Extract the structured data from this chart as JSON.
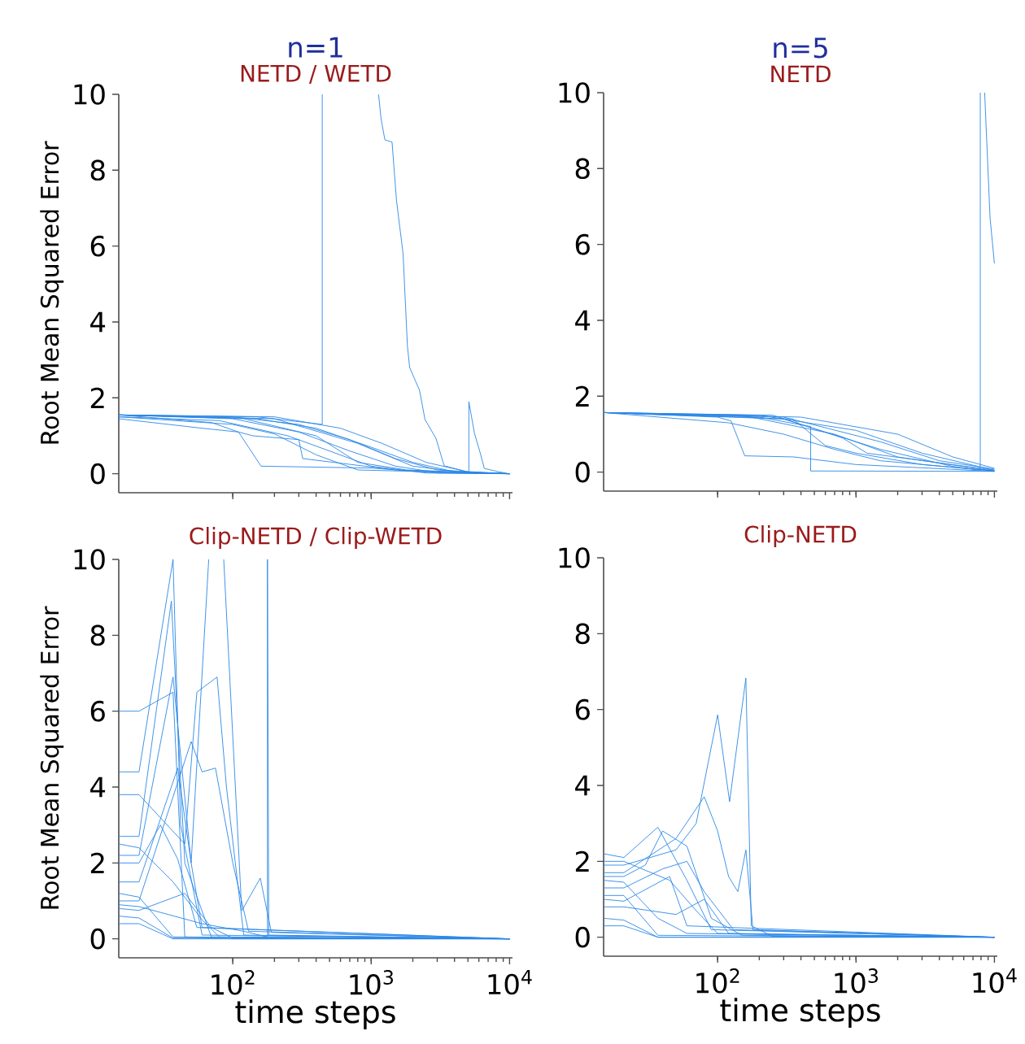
{
  "chart_data": [
    {
      "type": "line",
      "title": "n=1",
      "subtitle": "NETD / WETD",
      "ylabel": "Root Mean Squared Error",
      "log": "x",
      "tick_labels": "y",
      "xlim": [
        15,
        10500
      ],
      "ylim": [
        -0.5,
        10
      ],
      "xticks": [
        {
          "value": 100,
          "label": null
        },
        {
          "value": 1000,
          "label": null
        },
        {
          "value": 10000,
          "label": null
        }
      ],
      "yticks": [
        0,
        2,
        4,
        6,
        8,
        10
      ],
      "series": [
        {
          "color": "#2b87e8",
          "x": [
            15,
            100,
            300,
            700,
            1500,
            3000,
            10000
          ],
          "values": [
            1.55,
            1.5,
            1.3,
            0.9,
            0.4,
            0.1,
            0
          ]
        },
        {
          "color": "#2b87e8",
          "x": [
            15,
            100,
            300,
            700,
            1500,
            3000,
            10000
          ],
          "values": [
            1.55,
            1.45,
            1.1,
            0.6,
            0.2,
            0.03,
            0
          ]
        },
        {
          "color": "#2b87e8",
          "x": [
            15,
            150,
            400,
            1000,
            2000,
            4000,
            10000
          ],
          "values": [
            1.55,
            1.45,
            1.2,
            0.7,
            0.3,
            0.05,
            0
          ]
        },
        {
          "color": "#2b87e8",
          "x": [
            15,
            80,
            250,
            500,
            1000,
            2500,
            10000
          ],
          "values": [
            1.5,
            1.4,
            1.0,
            0.6,
            0.2,
            0.02,
            0
          ]
        },
        {
          "color": "#2b87e8",
          "x": [
            15,
            200,
            600,
            1200,
            2500,
            5000,
            10000
          ],
          "values": [
            1.55,
            1.5,
            1.2,
            0.8,
            0.3,
            0.05,
            0
          ]
        },
        {
          "color": "#2b87e8",
          "x": [
            15,
            60,
            110,
            130,
            160,
            1000,
            3000,
            10000
          ],
          "values": [
            1.45,
            1.2,
            1.1,
            0.7,
            0.2,
            0.15,
            0.02,
            0
          ]
        },
        {
          "color": "#2b87e8",
          "x": [
            15,
            70,
            110,
            140,
            300,
            320,
            1500,
            10000
          ],
          "values": [
            1.55,
            1.35,
            1.1,
            1.0,
            0.9,
            0.4,
            0.1,
            0
          ]
        },
        {
          "color": "#2b87e8",
          "x": [
            15,
            120,
            400,
            800,
            1800,
            10000
          ],
          "values": [
            1.55,
            1.45,
            1.0,
            0.3,
            0.1,
            0
          ]
        },
        {
          "color": "#2b87e8",
          "x": [
            15,
            100,
            200,
            400,
            800,
            10000
          ],
          "values": [
            1.5,
            1.3,
            1.05,
            0.5,
            0.1,
            0
          ]
        },
        {
          "color": "#2b87e8",
          "x": [
            15,
            150,
            443,
            443,
            800,
            1130,
            1178,
            1256,
            1415,
            1524,
            1700,
            1828,
            1897,
            2235,
            2448,
            2940,
            3370,
            5080,
            10000
          ],
          "values": [
            1.55,
            1.5,
            1.3,
            10,
            null,
            10,
            9.36,
            8.8,
            8.74,
            7.2,
            5.8,
            3.36,
            2.8,
            2.2,
            1.43,
            0.93,
            0.21,
            0.04,
            0
          ]
        },
        {
          "color": "#2b87e8",
          "x": [
            15,
            200,
            800,
            2000,
            5080,
            5080,
            5570,
            6110,
            6570,
            8400,
            10000
          ],
          "values": [
            1.55,
            1.45,
            0.8,
            0.2,
            0.02,
            1.9,
            1.07,
            0.57,
            0.14,
            0.05,
            0
          ]
        }
      ]
    },
    {
      "type": "line",
      "title": "n=5",
      "subtitle": "NETD",
      "log": "x",
      "tick_labels": "y",
      "xlim": [
        15,
        10500
      ],
      "ylim": [
        -0.5,
        10
      ],
      "xticks": [
        {
          "value": 100,
          "label": null
        },
        {
          "value": 1000,
          "label": null
        },
        {
          "value": 10000,
          "label": null
        }
      ],
      "yticks": [
        0,
        2,
        4,
        6,
        8,
        10
      ],
      "series": [
        {
          "color": "#2b87e8",
          "x": [
            15,
            200,
            1000,
            3000,
            10000
          ],
          "values": [
            1.57,
            1.5,
            1.1,
            0.5,
            0.05
          ]
        },
        {
          "color": "#2b87e8",
          "x": [
            15,
            150,
            700,
            2000,
            10000
          ],
          "values": [
            1.57,
            1.5,
            1.0,
            0.4,
            0.03
          ]
        },
        {
          "color": "#2b87e8",
          "x": [
            15,
            300,
            1500,
            4000,
            10000
          ],
          "values": [
            1.57,
            1.45,
            0.8,
            0.3,
            0.08
          ]
        },
        {
          "color": "#2b87e8",
          "x": [
            15,
            100,
            125,
            157,
            355,
            1000,
            10000
          ],
          "values": [
            1.57,
            1.45,
            1.35,
            0.43,
            0.4,
            0.2,
            0.02
          ]
        },
        {
          "color": "#2b87e8",
          "x": [
            15,
            200,
            470,
            470,
            10000
          ],
          "values": [
            1.57,
            1.45,
            1.2,
            0.03,
            0.02
          ]
        },
        {
          "color": "#2b87e8",
          "x": [
            15,
            250,
            800,
            1200,
            10000
          ],
          "values": [
            1.57,
            1.5,
            0.9,
            0.5,
            0.05
          ]
        },
        {
          "color": "#2b87e8",
          "x": [
            15,
            400,
            2000,
            5000,
            10000
          ],
          "values": [
            1.57,
            1.45,
            1.0,
            0.4,
            0.1
          ]
        },
        {
          "color": "#2b87e8",
          "x": [
            15,
            120,
            300,
            700,
            1500,
            10000
          ],
          "values": [
            1.57,
            1.3,
            1.0,
            0.6,
            0.3,
            0.03
          ]
        },
        {
          "color": "#2b87e8",
          "x": [
            15,
            350,
            600,
            1000,
            3000,
            10000
          ],
          "values": [
            1.57,
            1.4,
            0.7,
            0.5,
            0.2,
            0.03
          ]
        },
        {
          "color": "#2b87e8",
          "x": [
            15,
            300,
            1500,
            5000,
            7900,
            7900,
            8200,
            8500,
            9300,
            10000
          ],
          "values": [
            1.57,
            1.4,
            0.6,
            0.15,
            0.05,
            10,
            null,
            10,
            6.7,
            5.5
          ]
        }
      ]
    },
    {
      "type": "line",
      "title": "Clip-NETD / Clip-WETD",
      "xlabel": "time steps",
      "ylabel": "Root Mean Squared Error",
      "log": "x",
      "xlim": [
        15,
        10500
      ],
      "ylim": [
        -0.5,
        10
      ],
      "xticks": [
        {
          "value": 100,
          "label": "10$^{2}$"
        },
        {
          "value": 1000,
          "label": "10$^{3}$"
        },
        {
          "value": 10000,
          "label": "10$^{4}$"
        }
      ],
      "yticks": [
        0,
        2,
        4,
        6,
        8,
        10
      ],
      "series": [
        {
          "color": "#2b87e8",
          "x": [
            15,
            21,
            37,
            45,
            100,
            10000
          ],
          "values": [
            6.0,
            6.0,
            6.5,
            0.05,
            0,
            0
          ]
        },
        {
          "color": "#2b87e8",
          "x": [
            15,
            21,
            37,
            42,
            60,
            10000
          ],
          "values": [
            4.4,
            4.4,
            10,
            3.0,
            0.1,
            0
          ]
        },
        {
          "color": "#2b87e8",
          "x": [
            15,
            21,
            36,
            45,
            70,
            10000
          ],
          "values": [
            2.7,
            2.7,
            8.9,
            2.0,
            0.05,
            0
          ]
        },
        {
          "color": "#2b87e8",
          "x": [
            15,
            21,
            37,
            50,
            67,
            75,
            86,
            116,
            158,
            190,
            10000
          ],
          "values": [
            2.2,
            2.2,
            6.9,
            2.0,
            10,
            null,
            10,
            0.74,
            1.6,
            0.17,
            0
          ]
        },
        {
          "color": "#2b87e8",
          "x": [
            15,
            21,
            45,
            55,
            77,
            90,
            120,
            10000
          ],
          "values": [
            3.8,
            3.8,
            2.5,
            6.5,
            6.9,
            4.0,
            0.1,
            0
          ]
        },
        {
          "color": "#2b87e8",
          "x": [
            15,
            21,
            50,
            60,
            75,
            100,
            130,
            10000
          ],
          "values": [
            1.0,
            1.0,
            5.2,
            4.4,
            4.5,
            2.0,
            0.2,
            0
          ]
        },
        {
          "color": "#2b87e8",
          "x": [
            15,
            21,
            30,
            40,
            55,
            10000
          ],
          "values": [
            2.0,
            2.0,
            3.0,
            2.1,
            0.3,
            0
          ]
        },
        {
          "color": "#2b87e8",
          "x": [
            15,
            21,
            37,
            10000
          ],
          "values": [
            1.2,
            1.1,
            0.05,
            0
          ]
        },
        {
          "color": "#2b87e8",
          "x": [
            15,
            21,
            37,
            10000
          ],
          "values": [
            0.6,
            0.55,
            0.02,
            0
          ]
        },
        {
          "color": "#2b87e8",
          "x": [
            15,
            21,
            45,
            70,
            100,
            10000
          ],
          "values": [
            0.8,
            0.75,
            1.2,
            0.3,
            0.02,
            0
          ]
        },
        {
          "color": "#2b87e8",
          "x": [
            15,
            21,
            37,
            60,
            80,
            10000
          ],
          "values": [
            2.5,
            2.4,
            1.5,
            0.5,
            0.05,
            0
          ]
        },
        {
          "color": "#2b87e8",
          "x": [
            15,
            21,
            60,
            120,
            178,
            178,
            182,
            10000
          ],
          "values": [
            0.9,
            0.85,
            0.4,
            0.2,
            0.05,
            10,
            0.1,
            0
          ]
        },
        {
          "color": "#2b87e8",
          "x": [
            15,
            21,
            40,
            50,
            60,
            10000
          ],
          "values": [
            1.5,
            1.5,
            4.5,
            2.0,
            0.3,
            0
          ]
        },
        {
          "color": "#2b87e8",
          "x": [
            15,
            21,
            37,
            10000
          ],
          "values": [
            0.4,
            0.4,
            0.0,
            0
          ]
        }
      ]
    },
    {
      "type": "line",
      "title": "Clip-NETD",
      "xlabel": "time steps",
      "log": "x",
      "xlim": [
        15,
        10500
      ],
      "ylim": [
        -0.5,
        10
      ],
      "xticks": [
        {
          "value": 100,
          "label": "10$^{2}$"
        },
        {
          "value": 1000,
          "label": "10$^{3}$"
        },
        {
          "value": 10000,
          "label": "10$^{4}$"
        }
      ],
      "yticks": [
        0,
        2,
        4,
        6,
        8,
        10
      ],
      "series": [
        {
          "color": "#2b87e8",
          "x": [
            15,
            21,
            50,
            70,
            100,
            122,
            160,
            175,
            250,
            10000
          ],
          "values": [
            1.9,
            1.9,
            2.3,
            3.0,
            5.86,
            3.57,
            6.83,
            0.3,
            0.02,
            0
          ]
        },
        {
          "color": "#2b87e8",
          "x": [
            15,
            21,
            50,
            80,
            100,
            120,
            140,
            160,
            180,
            10000
          ],
          "values": [
            1.7,
            1.7,
            2.6,
            3.7,
            2.8,
            1.6,
            1.2,
            2.3,
            0.2,
            0
          ]
        },
        {
          "color": "#2b87e8",
          "x": [
            15,
            21,
            37,
            60,
            90,
            10000
          ],
          "values": [
            2.2,
            2.1,
            2.9,
            1.5,
            0.2,
            0
          ]
        },
        {
          "color": "#2b87e8",
          "x": [
            15,
            21,
            37,
            60,
            10000
          ],
          "values": [
            1.5,
            1.45,
            0.5,
            0.1,
            0
          ]
        },
        {
          "color": "#2b87e8",
          "x": [
            15,
            21,
            37,
            10000
          ],
          "values": [
            1.1,
            1.1,
            0.05,
            0
          ]
        },
        {
          "color": "#2b87e8",
          "x": [
            15,
            21,
            37,
            10000
          ],
          "values": [
            0.5,
            0.45,
            0.0,
            0
          ]
        },
        {
          "color": "#2b87e8",
          "x": [
            15,
            21,
            50,
            80,
            120,
            10000
          ],
          "values": [
            0.8,
            0.8,
            0.6,
            1.0,
            0.1,
            0
          ]
        },
        {
          "color": "#2b87e8",
          "x": [
            15,
            21,
            40,
            60,
            80,
            130,
            10000
          ],
          "values": [
            1.3,
            1.3,
            1.8,
            2.0,
            1.2,
            0.2,
            0
          ]
        },
        {
          "color": "#2b87e8",
          "x": [
            15,
            21,
            45,
            70,
            100,
            10000
          ],
          "values": [
            2.0,
            2.0,
            1.5,
            0.7,
            0.1,
            0
          ]
        },
        {
          "color": "#2b87e8",
          "x": [
            15,
            21,
            45,
            60,
            10000
          ],
          "values": [
            1.0,
            0.95,
            1.6,
            0.3,
            0
          ]
        },
        {
          "color": "#2b87e8",
          "x": [
            15,
            21,
            30,
            40,
            60,
            90,
            150,
            10000
          ],
          "values": [
            1.6,
            1.6,
            1.9,
            2.8,
            2.4,
            0.5,
            0.05,
            0
          ]
        },
        {
          "color": "#2b87e8",
          "x": [
            15,
            21,
            37,
            10000
          ],
          "values": [
            0.3,
            0.3,
            0.0,
            0
          ]
        }
      ]
    }
  ]
}
